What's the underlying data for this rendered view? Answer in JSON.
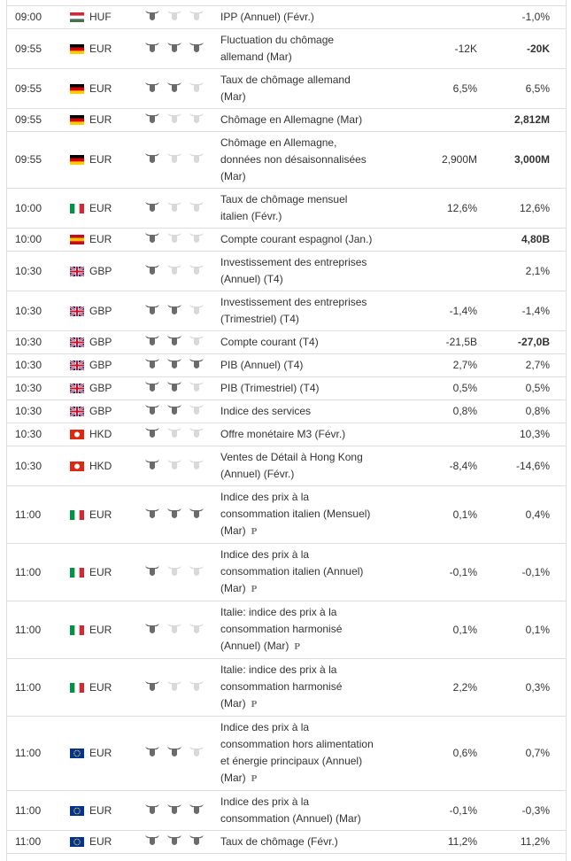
{
  "rows": [
    {
      "time": "09:00",
      "flag": "hu",
      "currency": "HUF",
      "importance": 1,
      "event": "IPP (Annuel) (Févr.)",
      "forecast": null,
      "previous": "-1,0%",
      "bold": false
    },
    {
      "time": "09:55",
      "flag": "de",
      "currency": "EUR",
      "importance": 3,
      "event": "Fluctuation du chômage allemand (Mar)",
      "forecast": "-12K",
      "previous": "-20K",
      "bold": true
    },
    {
      "time": "09:55",
      "flag": "de",
      "currency": "EUR",
      "importance": 2,
      "event": "Taux de chômage allemand (Mar)",
      "forecast": "6,5%",
      "previous": "6,5%",
      "bold": false
    },
    {
      "time": "09:55",
      "flag": "de",
      "currency": "EUR",
      "importance": 1,
      "event": "Chômage en Allemagne (Mar)",
      "forecast": null,
      "previous": "2,812M",
      "bold": true
    },
    {
      "time": "09:55",
      "flag": "de",
      "currency": "EUR",
      "importance": 1,
      "event": "Chômage en Allemagne, données non désaisonnalisées (Mar)",
      "forecast": "2,900M",
      "previous": "3,000M",
      "bold": true
    },
    {
      "time": "10:00",
      "flag": "it",
      "currency": "EUR",
      "importance": 1,
      "event": "Taux de chômage mensuel italien (Févr.)",
      "forecast": "12,6%",
      "previous": "12,6%",
      "bold": false
    },
    {
      "time": "10:00",
      "flag": "es",
      "currency": "EUR",
      "importance": 1,
      "event": "Compte courant espagnol (Jan.)",
      "forecast": null,
      "previous": "4,80B",
      "bold": true
    },
    {
      "time": "10:30",
      "flag": "gb",
      "currency": "GBP",
      "importance": 1,
      "event": "Investissement des entreprises (Annuel) (T4)",
      "forecast": null,
      "previous": "2,1%",
      "bold": false
    },
    {
      "time": "10:30",
      "flag": "gb",
      "currency": "GBP",
      "importance": 2,
      "event": "Investissement des entreprises (Trimestriel) (T4)",
      "forecast": "-1,4%",
      "previous": "-1,4%",
      "bold": false
    },
    {
      "time": "10:30",
      "flag": "gb",
      "currency": "GBP",
      "importance": 2,
      "event": "Compte courant (T4)",
      "forecast": "-21,5B",
      "previous": "-27,0B",
      "bold": true
    },
    {
      "time": "10:30",
      "flag": "gb",
      "currency": "GBP",
      "importance": 3,
      "event": "PIB (Annuel) (T4)",
      "forecast": "2,7%",
      "previous": "2,7%",
      "bold": false
    },
    {
      "time": "10:30",
      "flag": "gb",
      "currency": "GBP",
      "importance": 2,
      "event": "PIB (Trimestriel) (T4)",
      "forecast": "0,5%",
      "previous": "0,5%",
      "bold": false
    },
    {
      "time": "10:30",
      "flag": "gb",
      "currency": "GBP",
      "importance": 2,
      "event": "Indice des services",
      "forecast": "0,8%",
      "previous": "0,8%",
      "bold": false
    },
    {
      "time": "10:30",
      "flag": "hk",
      "currency": "HKD",
      "importance": 1,
      "event": "Offre monétaire M3 (Févr.)",
      "forecast": null,
      "previous": "10,3%",
      "bold": false
    },
    {
      "time": "10:30",
      "flag": "hk",
      "currency": "HKD",
      "importance": 1,
      "event": "Ventes de Détail à Hong Kong (Annuel) (Févr.)",
      "forecast": "-8,4%",
      "previous": "-14,6%",
      "bold": false
    },
    {
      "time": "11:00",
      "flag": "it",
      "currency": "EUR",
      "importance": 3,
      "event": "Indice des prix à la consommation italien (Mensuel) (Mar)",
      "mark": "P",
      "forecast": "0,1%",
      "previous": "0,4%",
      "bold": false
    },
    {
      "time": "11:00",
      "flag": "it",
      "currency": "EUR",
      "importance": 1,
      "event": "Indice des prix à la consommation italien (Annuel) (Mar)",
      "mark": "P",
      "forecast": "-0,1%",
      "previous": "-0,1%",
      "bold": false
    },
    {
      "time": "11:00",
      "flag": "it",
      "currency": "EUR",
      "importance": 1,
      "event": "Italie: indice des prix à la consommation harmonisé (Annuel) (Mar)",
      "mark": "P",
      "forecast": "0,1%",
      "previous": "0,1%",
      "bold": false
    },
    {
      "time": "11:00",
      "flag": "it",
      "currency": "EUR",
      "importance": 1,
      "event": "Italie: indice des prix à la consommation harmonisé (Mar)",
      "mark": "P",
      "forecast": "2,2%",
      "previous": "0,3%",
      "bold": false
    },
    {
      "time": "11:00",
      "flag": "eu",
      "currency": "EUR",
      "importance": 2,
      "event": "Indice des prix à la consommation hors alimentation et énergie principaux (Annuel) (Mar)",
      "mark": "P",
      "forecast": "0,6%",
      "previous": "0,7%",
      "bold": false
    },
    {
      "time": "11:00",
      "flag": "eu",
      "currency": "EUR",
      "importance": 3,
      "event": "Indice des prix à la consommation (Annuel) (Mar)",
      "forecast": "-0,1%",
      "previous": "-0,3%",
      "bold": false
    },
    {
      "time": "11:00",
      "flag": "eu",
      "currency": "EUR",
      "importance": 3,
      "event": "Taux de chômage (Févr.)",
      "forecast": "11,2%",
      "previous": "11,2%",
      "bold": false
    }
  ]
}
